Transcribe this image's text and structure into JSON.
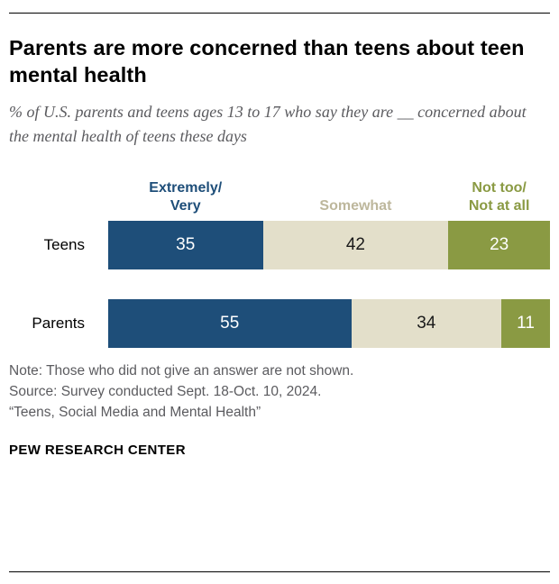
{
  "header": {
    "title": "Parents are more concerned than teens about teen mental health",
    "subtitle": "% of U.S. parents and teens ages 13 to 17 who say they are __ concerned about the mental health of teens these days"
  },
  "chart_data": {
    "type": "bar",
    "stacked": true,
    "orientation": "horizontal",
    "categories": [
      "Teens",
      "Parents"
    ],
    "series": [
      {
        "name": "Extremely/Very",
        "legend_label": "Extremely/\nVery",
        "values": [
          35,
          55
        ],
        "color": "#1e4e79",
        "label_color": "#1e4e79",
        "value_color": "#ffffff"
      },
      {
        "name": "Somewhat",
        "legend_label": "Somewhat",
        "values": [
          42,
          34
        ],
        "color": "#e3dfca",
        "label_color": "#bdb79c",
        "value_color": "#1a1a1a"
      },
      {
        "name": "Not too/Not at all",
        "legend_label": "Not too/\nNot at all",
        "values": [
          23,
          11
        ],
        "color": "#8a9a43",
        "label_color": "#8a9a43",
        "value_color": "#ffffff"
      }
    ],
    "legend_position": "top",
    "value_labels": "inside",
    "xlim": [
      0,
      100
    ],
    "grid": false
  },
  "footer": {
    "note": "Note: Those who did not give an answer are not shown.",
    "source": "Source: Survey conducted Sept. 18-Oct. 10, 2024.",
    "citation": "“Teens, Social Media and Mental Health”",
    "brand": "PEW RESEARCH CENTER"
  }
}
